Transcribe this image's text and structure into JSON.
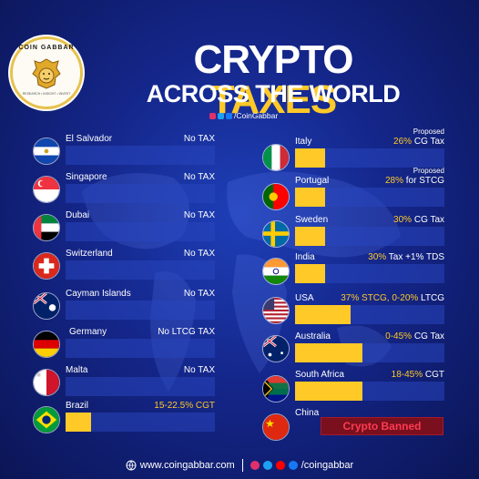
{
  "logo": {
    "name": "COIN GABBAR",
    "tagline": "RESEARCH • INSIGHT • INVEST"
  },
  "header": {
    "title_part1": "CRYPTO",
    "title_part2": "TAXES",
    "subtitle": "ACROSS THE WORLD",
    "handle": "/CoinGabbar"
  },
  "colors": {
    "accent": "#ffc928",
    "bar": "#2846be",
    "banned_bg": "#7a0f1e",
    "banned_text": "#ff3b4f"
  },
  "left_rows": [
    {
      "country": "El Salvador",
      "tax": "No TAX",
      "fill": 0
    },
    {
      "country": "Singapore",
      "tax": "No TAX",
      "fill": 0
    },
    {
      "country": "Dubai",
      "tax": "No TAX",
      "fill": 0
    },
    {
      "country": "Switzerland",
      "tax": "No TAX",
      "fill": 0
    },
    {
      "country": "Cayman Islands",
      "tax": "No TAX",
      "fill": 0
    },
    {
      "country": "Germany",
      "tax": "No LTCG TAX",
      "fill": 0
    },
    {
      "country": "Malta",
      "tax": "No TAX",
      "fill": 0
    },
    {
      "country": "Brazil",
      "tax": "15-22.5% CGT",
      "fill": 0.17
    }
  ],
  "right_rows": [
    {
      "country": "Italy",
      "note": "Proposed",
      "tax_rate": "26%",
      "tax_suffix": " CG Tax",
      "fill": 0.2
    },
    {
      "country": "Portugal",
      "note": "Proposed",
      "tax_rate": "28%",
      "tax_suffix": " for STCG",
      "fill": 0.2
    },
    {
      "country": "Sweden",
      "note": "",
      "tax_rate": "30%",
      "tax_suffix": " CG Tax",
      "fill": 0.2
    },
    {
      "country": "India",
      "note": "",
      "tax_rate": "30%",
      "tax_suffix": " Tax +1% TDS",
      "fill": 0.2
    },
    {
      "country": "USA",
      "note": "",
      "tax_rate": "37% STCG, 0-20%",
      "tax_suffix": " LTCG",
      "fill": 0.37
    },
    {
      "country": "Australia",
      "note": "",
      "tax_rate": "0-45%",
      "tax_suffix": " CG Tax",
      "fill": 0.45
    },
    {
      "country": "South Africa",
      "note": "",
      "tax_rate": "18-45%",
      "tax_suffix": " CGT",
      "fill": 0.45
    },
    {
      "country": "China",
      "note": "",
      "tax_rate": "",
      "tax_suffix": "",
      "fill": 0
    }
  ],
  "china_status": "Crypto Banned",
  "footer": {
    "website": "www.coingabbar.com",
    "handle": "/coingabbar"
  }
}
